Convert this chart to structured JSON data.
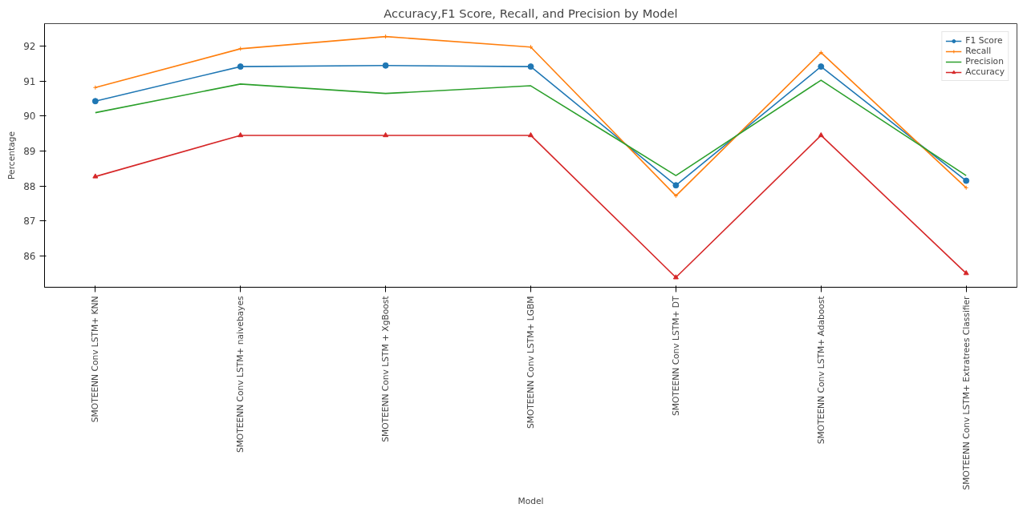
{
  "chart_data": {
    "type": "line",
    "title": "Accuracy,F1 Score, Recall, and Precision by Model",
    "xlabel": "Model",
    "ylabel": "Percentage",
    "categories": [
      "SMOTEENN Conv LSTM+ KNN",
      "SMOTEENN Conv LSTM+ naivebayes",
      "SMOTEENN Conv LSTM + XgBoost",
      "SMOTEENN Conv LSTM+ LGBM",
      "SMOTEENN Conv LSTM+ DT",
      "SMOTEENN Conv LSTM+ Adaboost",
      "SMOTEENN Conv LSTM+ Extratrees Classifier"
    ],
    "series": [
      {
        "name": "F1 Score",
        "color": "#1f77b4",
        "marker": "circle",
        "values": [
          90.43,
          91.42,
          91.45,
          91.42,
          88.02,
          91.42,
          88.15
        ]
      },
      {
        "name": "Recall",
        "color": "#ff7f0e",
        "marker": "cross",
        "values": [
          90.82,
          91.93,
          92.28,
          91.98,
          87.72,
          91.82,
          87.95
        ]
      },
      {
        "name": "Precision",
        "color": "#2ca02c",
        "marker": "none",
        "values": [
          90.1,
          90.92,
          90.65,
          90.87,
          88.3,
          91.03,
          88.3
        ]
      },
      {
        "name": "Accuracy",
        "color": "#d62728",
        "marker": "triangle",
        "values": [
          88.27,
          89.45,
          89.45,
          89.45,
          85.38,
          89.45,
          85.5
        ]
      }
    ],
    "ylim": [
      85.1,
      92.65
    ],
    "yticks": [
      86,
      87,
      88,
      89,
      90,
      91,
      92
    ],
    "grid": false,
    "legend": "top right",
    "line_style": "solid"
  }
}
